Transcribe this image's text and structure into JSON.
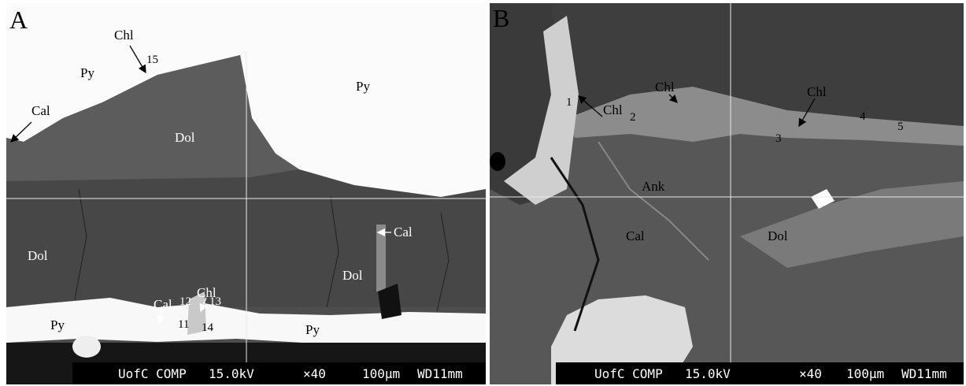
{
  "panels": [
    {
      "label": "A",
      "annotations": [
        "Chl",
        "15",
        "Py",
        "Cal",
        "Dol",
        "Py",
        "Dol",
        "Cal",
        "Chl",
        "Cal",
        "12",
        "13",
        "11",
        "14",
        "Dol",
        "Py",
        "Py"
      ],
      "info_bar": [
        "UofC COMP",
        "15.0kV",
        "×40",
        "100µm",
        "WD11mm"
      ]
    },
    {
      "label": "B",
      "annotations": [
        "Chl",
        "1",
        "Chl",
        "2",
        "Chl",
        "3",
        "4",
        "5",
        "Ank",
        "Cal",
        "Dol"
      ],
      "info_bar": [
        "UofC COMP",
        "15.0kV",
        "×40",
        "100µm",
        "WD11mm"
      ]
    }
  ]
}
